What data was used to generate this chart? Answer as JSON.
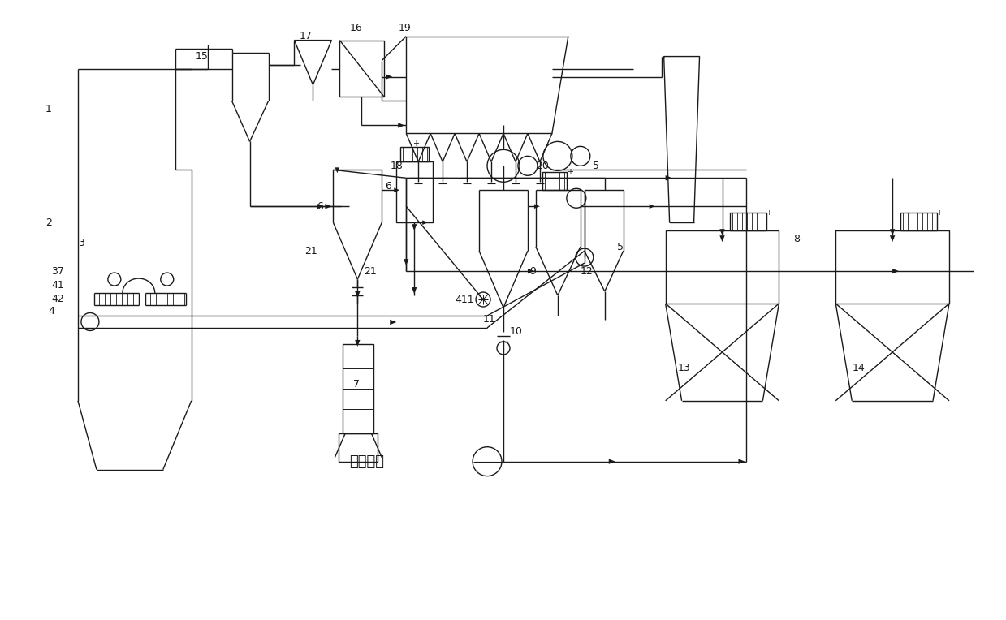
{
  "bg_color": "#ffffff",
  "lc": "#1a1a1a",
  "lw": 1.0,
  "fig_w": 12.39,
  "fig_h": 7.64
}
